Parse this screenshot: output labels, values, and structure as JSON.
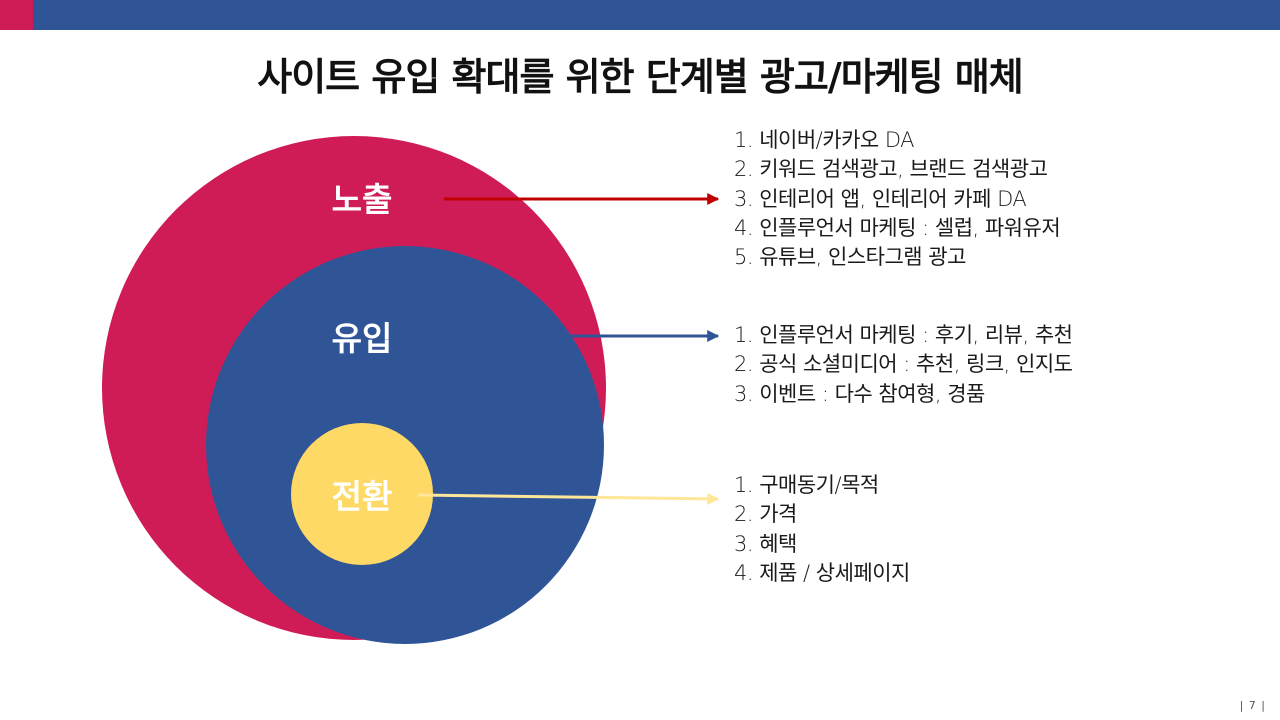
{
  "title": "사이트 유입 확대를 위한 단계별 광고/마케팅 매체",
  "colors": {
    "header_bar": "#2f5597",
    "header_accent": "#d01c56",
    "awareness": "#d01c56",
    "inflow": "#2f5597",
    "conversion": "#ffd966",
    "arrow_awareness": "#c00000",
    "arrow_inflow": "#2f5597",
    "arrow_conversion": "#ffe699"
  },
  "stages": {
    "awareness": {
      "label": "노출",
      "items": [
        "1. 네이버/카카오 DA",
        "2. 키워드 검색광고, 브랜드 검색광고",
        "3. 인테리어 앱, 인테리어 카페 DA",
        "4. 인플루언서 마케팅 : 셀럽, 파워유저",
        "5. 유튜브, 인스타그램 광고"
      ]
    },
    "inflow": {
      "label": "유입",
      "items": [
        "1. 인플루언서 마케팅 : 후기, 리뷰, 추천",
        "2. 공식 소셜미디어 : 추천, 링크, 인지도",
        "3. 이벤트 : 다수 참여형, 경품"
      ]
    },
    "conversion": {
      "label": "전환",
      "items": [
        "1. 구매동기/목적",
        "2. 가격",
        "3. 혜택",
        "4. 제품 / 상세페이지"
      ]
    }
  },
  "page_number": "| 7 |"
}
